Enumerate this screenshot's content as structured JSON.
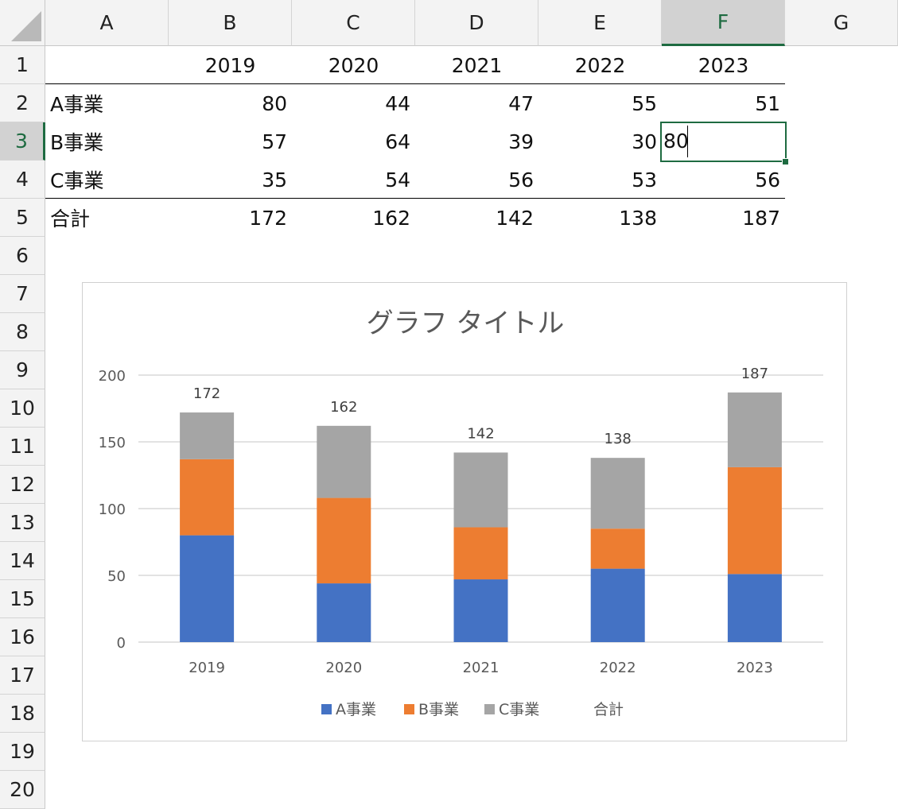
{
  "columns": [
    "A",
    "B",
    "C",
    "D",
    "E",
    "F",
    "G"
  ],
  "active_column": "F",
  "rows": [
    "1",
    "2",
    "3",
    "4",
    "5",
    "6",
    "7",
    "8",
    "9",
    "10",
    "11",
    "12",
    "13",
    "14",
    "15",
    "16",
    "17",
    "18",
    "19",
    "20"
  ],
  "active_row": "3",
  "table": {
    "header": [
      "",
      "2019",
      "2020",
      "2021",
      "2022",
      "2023"
    ],
    "body": [
      [
        "A事業",
        "80",
        "44",
        "47",
        "55",
        "51"
      ],
      [
        "B事業",
        "57",
        "64",
        "39",
        "30",
        ""
      ],
      [
        "C事業",
        "35",
        "54",
        "56",
        "53",
        "56"
      ],
      [
        "合計",
        "172",
        "162",
        "142",
        "138",
        "187"
      ]
    ]
  },
  "edit": {
    "cell": "F3",
    "value": "80"
  },
  "colors": {
    "A": "#4472c4",
    "B": "#ed7d31",
    "C": "#a5a5a5",
    "grid": "#d9d9d9",
    "accent": "#1e6b41"
  },
  "chart_data": {
    "type": "bar",
    "stacked": true,
    "title": "グラフ タイトル",
    "categories": [
      "2019",
      "2020",
      "2021",
      "2022",
      "2023"
    ],
    "series": [
      {
        "name": "A事業",
        "values": [
          80,
          44,
          47,
          55,
          51
        ]
      },
      {
        "name": "B事業",
        "values": [
          57,
          64,
          39,
          30,
          80
        ]
      },
      {
        "name": "C事業",
        "values": [
          35,
          54,
          56,
          53,
          56
        ]
      }
    ],
    "totals_name": "合計",
    "totals": [
      172,
      162,
      142,
      138,
      187
    ],
    "ylim": [
      0,
      200
    ],
    "yticks": [
      0,
      50,
      100,
      150,
      200
    ],
    "grid": true,
    "legend": "bottom"
  }
}
